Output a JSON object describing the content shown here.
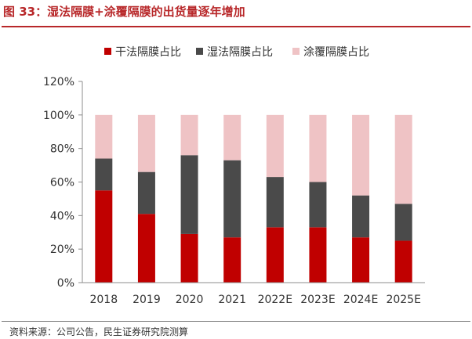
{
  "figure": {
    "title": "图 33：湿法隔膜+涂覆隔膜的出货量逐年增加",
    "source": "资料来源：公司公告，民生证券研究院测算"
  },
  "colors": {
    "dry": "#c00000",
    "wet": "#4a4a4a",
    "coated": "#efc3c5",
    "accent": "#b8282a"
  },
  "chart_data": {
    "type": "bar",
    "stacked": true,
    "categories": [
      "2018",
      "2019",
      "2020",
      "2021",
      "2022E",
      "2023E",
      "2024E",
      "2025E"
    ],
    "series": [
      {
        "name": "干法隔膜占比",
        "color": "#c00000",
        "values": [
          55,
          41,
          29,
          27,
          33,
          33,
          27,
          25
        ]
      },
      {
        "name": "湿法隔膜占比",
        "color": "#4a4a4a",
        "values": [
          19,
          25,
          47,
          46,
          30,
          27,
          25,
          22
        ]
      },
      {
        "name": "涂覆隔膜占比",
        "color": "#efc3c5",
        "values": [
          26,
          34,
          24,
          27,
          37,
          40,
          48,
          53
        ]
      }
    ],
    "yticks": [
      "0%",
      "20%",
      "40%",
      "60%",
      "80%",
      "100%",
      "120%"
    ],
    "ylim": [
      0,
      120
    ],
    "legend_position": "top-center",
    "grid": false
  }
}
